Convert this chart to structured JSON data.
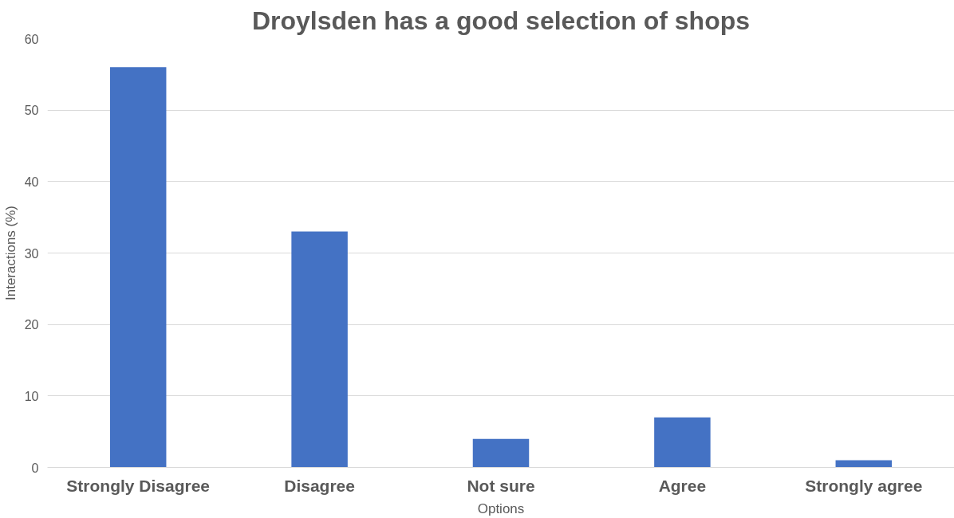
{
  "chart_data": {
    "type": "bar",
    "title": "Droylsden has a good selection of shops",
    "xlabel": "Options",
    "ylabel": "Interactions (%)",
    "categories": [
      "Strongly Disagree",
      "Disagree",
      "Not sure",
      "Agree",
      "Strongly agree"
    ],
    "values": [
      56,
      33,
      4,
      7,
      1
    ],
    "color": "#4472c4",
    "ylim": [
      0,
      60
    ],
    "yticks": [
      0,
      10,
      20,
      30,
      40,
      50,
      60
    ],
    "grid": "y"
  }
}
